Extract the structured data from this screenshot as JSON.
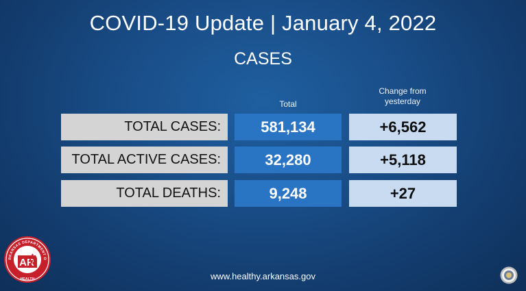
{
  "header": {
    "title": "COVID-19 Update | January 4, 2022",
    "subtitle": "CASES"
  },
  "columns": {
    "total": "Total",
    "change_line1": "Change from",
    "change_line2": "yesterday"
  },
  "rows": [
    {
      "label": "TOTAL CASES:",
      "total": "581,134",
      "change": "+6,562"
    },
    {
      "label": "TOTAL ACTIVE CASES:",
      "total": "32,280",
      "change": "+5,118"
    },
    {
      "label": "TOTAL DEATHS:",
      "total": "9,248",
      "change": "+27"
    }
  ],
  "footer": {
    "url": "www.healthy.arkansas.gov"
  },
  "logo": {
    "icon": "arkansas-department-of-health-logo",
    "ring_text": "ARKANSAS DEPARTMENT OF HEALTH",
    "letters": "AR"
  },
  "seal": {
    "icon": "state-seal-icon"
  },
  "colors": {
    "background": "#1a4f8a",
    "label_cell": "#d4d4d4",
    "total_cell": "#2a74c4",
    "change_cell": "#c8dbf1",
    "logo_red": "#c8202a"
  }
}
